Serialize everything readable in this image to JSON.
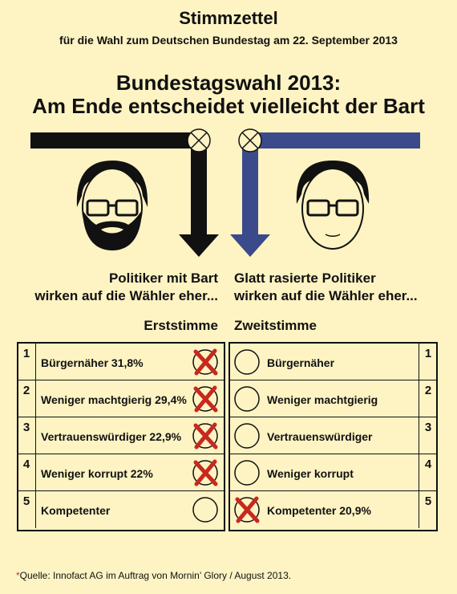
{
  "header": {
    "title": "Stimmzettel",
    "subtitle": "für die Wahl zum Deutschen Bundestag am 22. September 2013"
  },
  "headline": {
    "line1": "Bundestagswahl 2013:",
    "line2": "Am Ende entscheidet vielleicht der Bart"
  },
  "captions": {
    "left_line1": "Politiker mit Bart",
    "left_line2": "wirken auf die Wähler eher...",
    "right_line1": "Glatt rasierte Politiker",
    "right_line2": "wirken auf die Wähler eher..."
  },
  "columns": {
    "left": "Erststimme",
    "right": "Zweitstimme"
  },
  "rows": [
    {
      "num": "1",
      "left_label": "Bürgernäher 31,8%",
      "left_marked": true,
      "right_label": "Bürgernäher",
      "right_marked": false
    },
    {
      "num": "2",
      "left_label": "Weniger machtgierig 29,4%",
      "left_marked": true,
      "right_label": "Weniger machtgierig",
      "right_marked": false
    },
    {
      "num": "3",
      "left_label": "Vertrauenswürdiger 22,9%",
      "left_marked": true,
      "right_label": "Vertrauenswürdiger",
      "right_marked": false
    },
    {
      "num": "4",
      "left_label": "Weniger korrupt 22%",
      "left_marked": true,
      "right_label": "Weniger korrupt",
      "right_marked": false
    },
    {
      "num": "5",
      "left_label": "Kompetenter",
      "left_marked": false,
      "right_label": "Kompetenter 20,9%",
      "right_marked": true
    }
  ],
  "source": {
    "star": "*",
    "text": "Quelle: Innofact AG im Auftrag von Mornin’ Glory / August 2013."
  },
  "colors": {
    "background": "#fdf3c3",
    "left_arrow": "#111111",
    "right_arrow": "#3a4a8a",
    "mark": "#c8281e"
  },
  "icons": [
    "bearded-politician-icon",
    "shaved-politician-icon",
    "ballot-cross-icon",
    "arrow-down-icon"
  ]
}
